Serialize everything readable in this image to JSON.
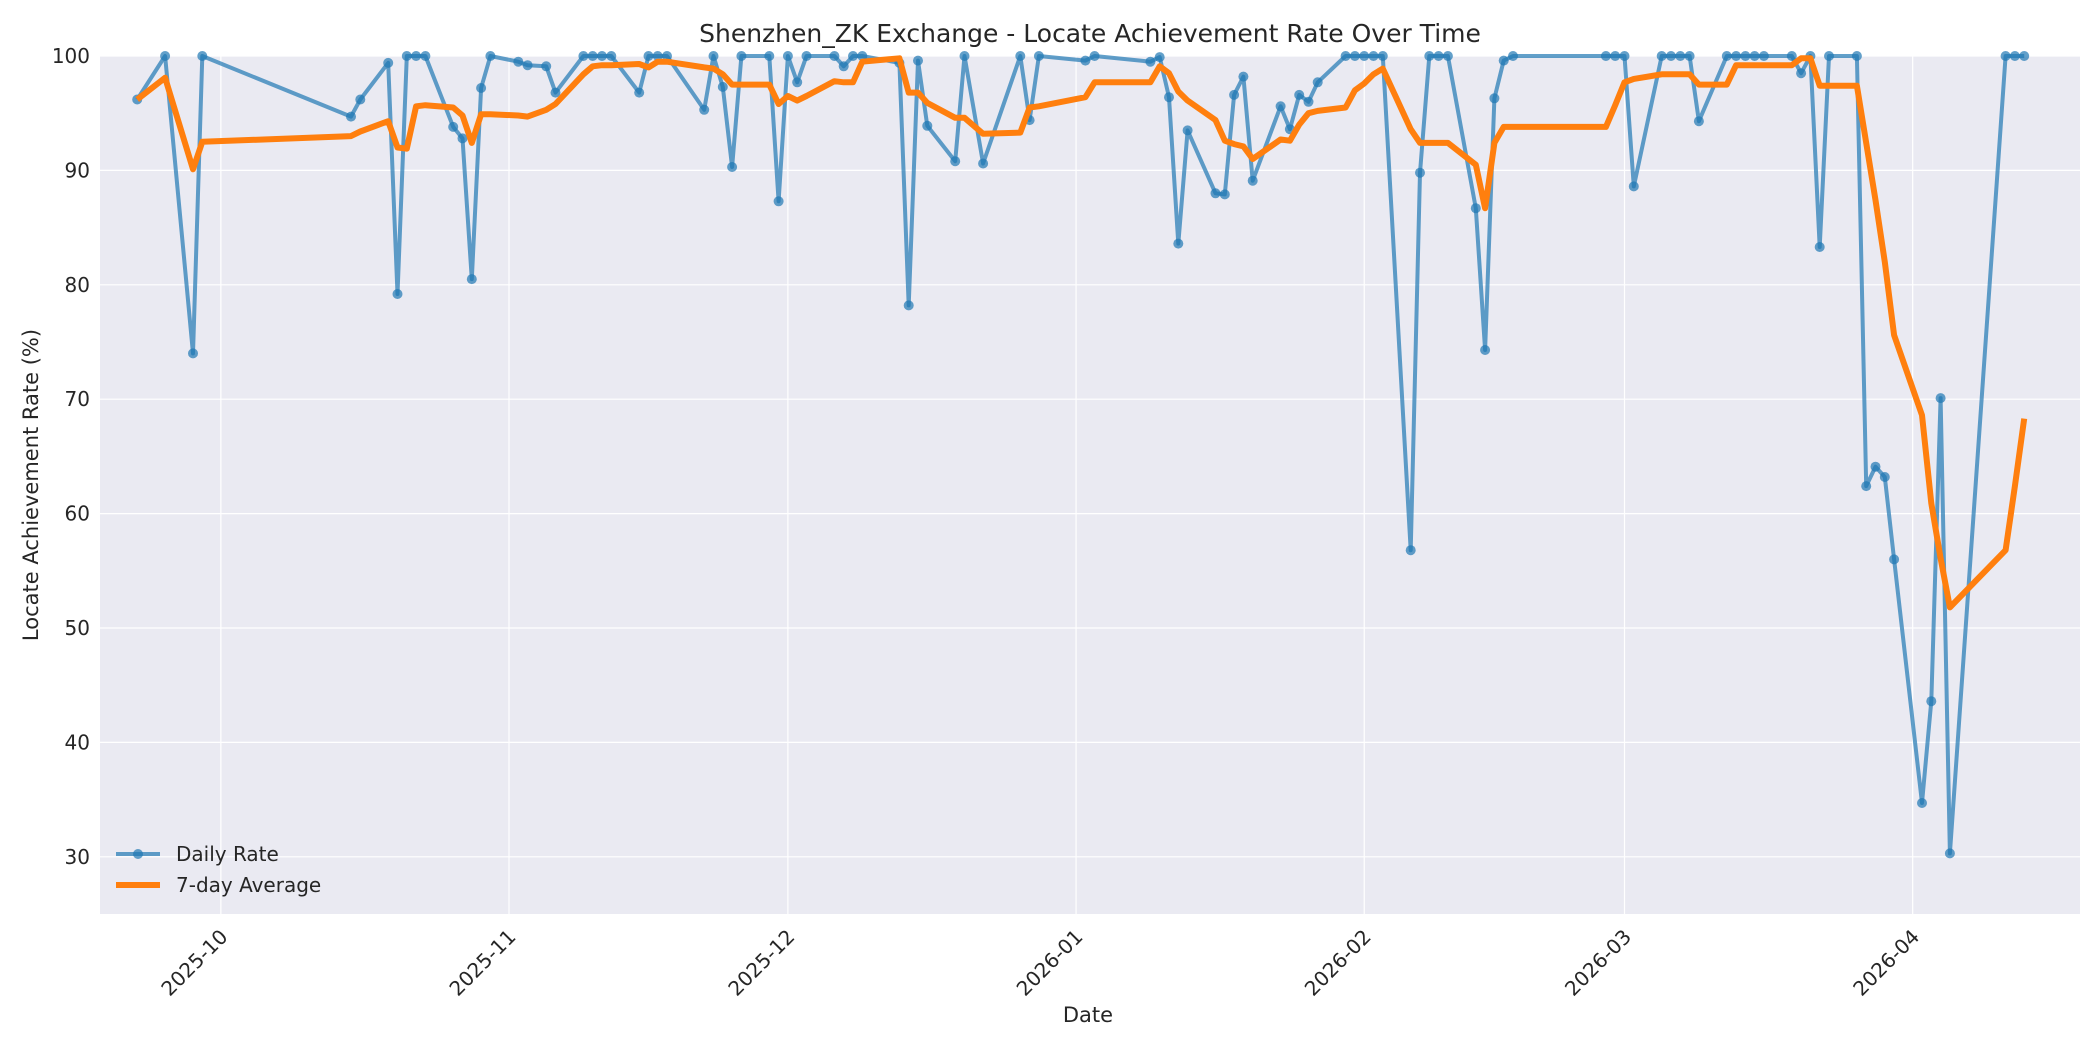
{
  "chart_data": {
    "type": "line",
    "title": "Shenzhen_ZK Exchange - Locate Achievement Rate Over Time",
    "xlabel": "Date",
    "ylabel": "Locate Achievement Rate (%)",
    "x_ticks": [
      "2025-10-01",
      "2025-11-01",
      "2025-12-01",
      "2026-01-01",
      "2026-02-01",
      "2026-03-01",
      "2026-04-01"
    ],
    "x_tick_labels": [
      "2025-10",
      "2025-11",
      "2025-12",
      "2026-01",
      "2026-02",
      "2026-03",
      "2026-04"
    ],
    "y_ticks": [
      30,
      40,
      50,
      60,
      70,
      80,
      90,
      100
    ],
    "y_tick_labels": [
      "30",
      "40",
      "50",
      "60",
      "70",
      "80",
      "90",
      "100"
    ],
    "xlim": [
      "2025-09-18",
      "2026-04-19"
    ],
    "ylim": [
      25,
      100
    ],
    "grid": true,
    "legend_position": "bottom-left",
    "colors": {
      "background": "#eaeaf2",
      "grid": "#ffffff",
      "daily": "#1f77b4",
      "average": "#ff7f0e"
    },
    "series": [
      {
        "name": "Daily Rate",
        "style": "line-marker",
        "points": [
          [
            "2025-09-22",
            96.2
          ],
          [
            "2025-09-25",
            100.0
          ],
          [
            "2025-09-28",
            74.0
          ],
          [
            "2025-09-29",
            100.0
          ],
          [
            "2025-10-15",
            94.7
          ],
          [
            "2025-10-16",
            96.2
          ],
          [
            "2025-10-19",
            99.4
          ],
          [
            "2025-10-20",
            79.2
          ],
          [
            "2025-10-21",
            100.0
          ],
          [
            "2025-10-22",
            100.0
          ],
          [
            "2025-10-23",
            100.0
          ],
          [
            "2025-10-26",
            93.8
          ],
          [
            "2025-10-27",
            92.8
          ],
          [
            "2025-10-28",
            80.5
          ],
          [
            "2025-10-29",
            97.2
          ],
          [
            "2025-10-30",
            100.0
          ],
          [
            "2025-11-02",
            99.5
          ],
          [
            "2025-11-03",
            99.2
          ],
          [
            "2025-11-05",
            99.1
          ],
          [
            "2025-11-06",
            96.8
          ],
          [
            "2025-11-09",
            100.0
          ],
          [
            "2025-11-10",
            100.0
          ],
          [
            "2025-11-11",
            100.0
          ],
          [
            "2025-11-12",
            100.0
          ],
          [
            "2025-11-15",
            96.8
          ],
          [
            "2025-11-16",
            100.0
          ],
          [
            "2025-11-17",
            100.0
          ],
          [
            "2025-11-18",
            100.0
          ],
          [
            "2025-11-22",
            95.3
          ],
          [
            "2025-11-23",
            100.0
          ],
          [
            "2025-11-24",
            97.3
          ],
          [
            "2025-11-25",
            90.3
          ],
          [
            "2025-11-26",
            100.0
          ],
          [
            "2025-11-29",
            100.0
          ],
          [
            "2025-11-30",
            87.3
          ],
          [
            "2025-12-01",
            100.0
          ],
          [
            "2025-12-02",
            97.7
          ],
          [
            "2025-12-03",
            100.0
          ],
          [
            "2025-12-06",
            100.0
          ],
          [
            "2025-12-07",
            99.1
          ],
          [
            "2025-12-08",
            100.0
          ],
          [
            "2025-12-09",
            100.0
          ],
          [
            "2025-12-13",
            99.4
          ],
          [
            "2025-12-14",
            78.2
          ],
          [
            "2025-12-15",
            99.6
          ],
          [
            "2025-12-16",
            93.9
          ],
          [
            "2025-12-19",
            90.8
          ],
          [
            "2025-12-20",
            100.0
          ],
          [
            "2025-12-22",
            90.6
          ],
          [
            "2025-12-26",
            100.0
          ],
          [
            "2025-12-27",
            94.4
          ],
          [
            "2025-12-28",
            100.0
          ],
          [
            "2026-01-02",
            99.6
          ],
          [
            "2026-01-03",
            100.0
          ],
          [
            "2026-01-09",
            99.5
          ],
          [
            "2026-01-10",
            99.9
          ],
          [
            "2026-01-11",
            96.4
          ],
          [
            "2026-01-12",
            83.6
          ],
          [
            "2026-01-13",
            93.5
          ],
          [
            "2026-01-16",
            88.0
          ],
          [
            "2026-01-17",
            87.9
          ],
          [
            "2026-01-18",
            96.6
          ],
          [
            "2026-01-19",
            98.2
          ],
          [
            "2026-01-20",
            89.1
          ],
          [
            "2026-01-23",
            95.6
          ],
          [
            "2026-01-24",
            93.6
          ],
          [
            "2026-01-25",
            96.6
          ],
          [
            "2026-01-26",
            96.0
          ],
          [
            "2026-01-27",
            97.7
          ],
          [
            "2026-01-30",
            100.0
          ],
          [
            "2026-01-31",
            100.0
          ],
          [
            "2026-02-01",
            100.0
          ],
          [
            "2026-02-02",
            100.0
          ],
          [
            "2026-02-03",
            100.0
          ],
          [
            "2026-02-06",
            56.8
          ],
          [
            "2026-02-07",
            89.8
          ],
          [
            "2026-02-08",
            100.0
          ],
          [
            "2026-02-09",
            100.0
          ],
          [
            "2026-02-10",
            100.0
          ],
          [
            "2026-02-13",
            86.7
          ],
          [
            "2026-02-14",
            74.3
          ],
          [
            "2026-02-15",
            96.3
          ],
          [
            "2026-02-16",
            99.6
          ],
          [
            "2026-02-17",
            100.0
          ],
          [
            "2026-02-27",
            100.0
          ],
          [
            "2026-02-28",
            100.0
          ],
          [
            "2026-03-01",
            100.0
          ],
          [
            "2026-03-02",
            88.6
          ],
          [
            "2026-03-05",
            100.0
          ],
          [
            "2026-03-06",
            100.0
          ],
          [
            "2026-03-07",
            100.0
          ],
          [
            "2026-03-08",
            100.0
          ],
          [
            "2026-03-09",
            94.3
          ],
          [
            "2026-03-12",
            100.0
          ],
          [
            "2026-03-13",
            100.0
          ],
          [
            "2026-03-14",
            100.0
          ],
          [
            "2026-03-15",
            100.0
          ],
          [
            "2026-03-16",
            100.0
          ],
          [
            "2026-03-19",
            100.0
          ],
          [
            "2026-03-20",
            98.5
          ],
          [
            "2026-03-21",
            100.0
          ],
          [
            "2026-03-22",
            83.3
          ],
          [
            "2026-03-23",
            100.0
          ],
          [
            "2026-03-26",
            100.0
          ],
          [
            "2026-03-27",
            62.4
          ],
          [
            "2026-03-28",
            64.1
          ],
          [
            "2026-03-29",
            63.2
          ],
          [
            "2026-03-30",
            56.0
          ],
          [
            "2026-04-02",
            34.7
          ],
          [
            "2026-04-03",
            43.6
          ],
          [
            "2026-04-04",
            70.1
          ],
          [
            "2026-04-05",
            30.3
          ],
          [
            "2026-04-11",
            100.0
          ],
          [
            "2026-04-12",
            100.0
          ],
          [
            "2026-04-13",
            100.0
          ]
        ]
      },
      {
        "name": "7-day Average",
        "style": "line",
        "points": [
          [
            "2025-09-22",
            96.2
          ],
          [
            "2025-09-25",
            98.1
          ],
          [
            "2025-09-28",
            90.1
          ],
          [
            "2025-09-29",
            92.5
          ],
          [
            "2025-10-15",
            93.0
          ],
          [
            "2025-10-16",
            93.4
          ],
          [
            "2025-10-19",
            94.3
          ],
          [
            "2025-10-20",
            92.0
          ],
          [
            "2025-10-21",
            91.9
          ],
          [
            "2025-10-22",
            95.6
          ],
          [
            "2025-10-23",
            95.7
          ],
          [
            "2025-10-26",
            95.5
          ],
          [
            "2025-10-27",
            94.8
          ],
          [
            "2025-10-28",
            92.4
          ],
          [
            "2025-10-29",
            94.9
          ],
          [
            "2025-10-30",
            94.9
          ],
          [
            "2025-11-02",
            94.8
          ],
          [
            "2025-11-03",
            94.7
          ],
          [
            "2025-11-05",
            95.3
          ],
          [
            "2025-11-06",
            95.8
          ],
          [
            "2025-11-09",
            98.4
          ],
          [
            "2025-11-10",
            99.1
          ],
          [
            "2025-11-11",
            99.2
          ],
          [
            "2025-11-12",
            99.2
          ],
          [
            "2025-11-15",
            99.3
          ],
          [
            "2025-11-16",
            99.0
          ],
          [
            "2025-11-17",
            99.5
          ],
          [
            "2025-11-18",
            99.5
          ],
          [
            "2025-11-22",
            99.0
          ],
          [
            "2025-11-23",
            98.9
          ],
          [
            "2025-11-24",
            98.4
          ],
          [
            "2025-11-25",
            97.5
          ],
          [
            "2025-11-26",
            97.5
          ],
          [
            "2025-11-29",
            97.5
          ],
          [
            "2025-11-30",
            95.8
          ],
          [
            "2025-12-01",
            96.5
          ],
          [
            "2025-12-02",
            96.1
          ],
          [
            "2025-12-03",
            96.5
          ],
          [
            "2025-12-06",
            97.8
          ],
          [
            "2025-12-07",
            97.7
          ],
          [
            "2025-12-08",
            97.7
          ],
          [
            "2025-12-09",
            99.5
          ],
          [
            "2025-12-13",
            99.8
          ],
          [
            "2025-12-14",
            96.8
          ],
          [
            "2025-12-15",
            96.8
          ],
          [
            "2025-12-16",
            95.9
          ],
          [
            "2025-12-19",
            94.6
          ],
          [
            "2025-12-20",
            94.6
          ],
          [
            "2025-12-22",
            93.2
          ],
          [
            "2025-12-26",
            93.3
          ],
          [
            "2025-12-27",
            95.5
          ],
          [
            "2025-12-28",
            95.6
          ],
          [
            "2026-01-02",
            96.4
          ],
          [
            "2026-01-03",
            97.7
          ],
          [
            "2026-01-09",
            97.7
          ],
          [
            "2026-01-10",
            99.1
          ],
          [
            "2026-01-11",
            98.5
          ],
          [
            "2026-01-12",
            96.9
          ],
          [
            "2026-01-13",
            96.1
          ],
          [
            "2026-01-16",
            94.4
          ],
          [
            "2026-01-17",
            92.6
          ],
          [
            "2026-01-18",
            92.3
          ],
          [
            "2026-01-19",
            92.1
          ],
          [
            "2026-01-20",
            91.0
          ],
          [
            "2026-01-23",
            92.7
          ],
          [
            "2026-01-24",
            92.6
          ],
          [
            "2026-01-25",
            94.0
          ],
          [
            "2026-01-26",
            95.0
          ],
          [
            "2026-01-27",
            95.2
          ],
          [
            "2026-01-30",
            95.5
          ],
          [
            "2026-01-31",
            97.0
          ],
          [
            "2026-02-01",
            97.6
          ],
          [
            "2026-02-02",
            98.4
          ],
          [
            "2026-02-03",
            98.9
          ],
          [
            "2026-02-06",
            93.6
          ],
          [
            "2026-02-07",
            92.4
          ],
          [
            "2026-02-08",
            92.4
          ],
          [
            "2026-02-09",
            92.4
          ],
          [
            "2026-02-10",
            92.4
          ],
          [
            "2026-02-13",
            90.5
          ],
          [
            "2026-02-14",
            86.7
          ],
          [
            "2026-02-15",
            92.4
          ],
          [
            "2026-02-16",
            93.8
          ],
          [
            "2026-02-17",
            93.8
          ],
          [
            "2026-02-27",
            93.8
          ],
          [
            "2026-02-28",
            95.7
          ],
          [
            "2026-03-01",
            97.7
          ],
          [
            "2026-03-02",
            98.0
          ],
          [
            "2026-03-05",
            98.4
          ],
          [
            "2026-03-06",
            98.4
          ],
          [
            "2026-03-07",
            98.4
          ],
          [
            "2026-03-08",
            98.4
          ],
          [
            "2026-03-09",
            97.5
          ],
          [
            "2026-03-12",
            97.5
          ],
          [
            "2026-03-13",
            99.2
          ],
          [
            "2026-03-14",
            99.2
          ],
          [
            "2026-03-15",
            99.2
          ],
          [
            "2026-03-16",
            99.2
          ],
          [
            "2026-03-19",
            99.2
          ],
          [
            "2026-03-20",
            99.8
          ],
          [
            "2026-03-21",
            99.8
          ],
          [
            "2026-03-22",
            97.4
          ],
          [
            "2026-03-23",
            97.4
          ],
          [
            "2026-03-26",
            97.4
          ],
          [
            "2026-03-27",
            92.4
          ],
          [
            "2026-03-28",
            87.4
          ],
          [
            "2026-03-29",
            82.0
          ],
          [
            "2026-03-30",
            75.6
          ],
          [
            "2026-04-02",
            68.6
          ],
          [
            "2026-04-03",
            60.9
          ],
          [
            "2026-04-04",
            56.1
          ],
          [
            "2026-04-05",
            51.8
          ],
          [
            "2026-04-11",
            56.8
          ],
          [
            "2026-04-12",
            62.4
          ],
          [
            "2026-04-13",
            68.3
          ]
        ]
      }
    ]
  }
}
